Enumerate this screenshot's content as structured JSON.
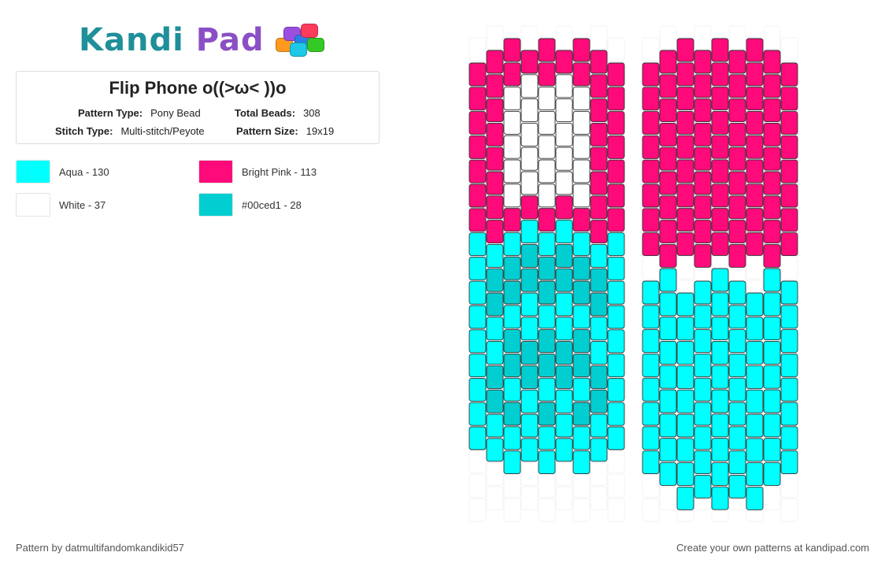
{
  "brand": {
    "word1": "Kandi",
    "word2": "Pad",
    "beads_icon": "bead-pile-icon"
  },
  "pattern": {
    "title": "Flip Phone o((>ω< ))o",
    "type_label": "Pattern Type:",
    "type_value": "Pony Bead",
    "beads_label": "Total Beads:",
    "beads_value": "308",
    "stitch_label": "Stitch Type:",
    "stitch_value": "Multi-stitch/Peyote",
    "size_label": "Pattern Size:",
    "size_value": "19x19"
  },
  "legend": [
    {
      "label": "Aqua - 130",
      "color": "#00ffff"
    },
    {
      "label": "Bright Pink - 113",
      "color": "#ff0a7a"
    },
    {
      "label": "White - 37",
      "color": "#ffffff"
    },
    {
      "label": "#00ced1 - 28",
      "color": "#00ced1"
    }
  ],
  "footer": {
    "credit": "Pattern by datmultifandomkandikid57",
    "cta": "Create your own patterns at kandipad.com"
  },
  "colors": {
    "pink": "#ff0a7a",
    "aqua": "#00ffff",
    "teal": "#00ced1",
    "white": "#ffffff"
  }
}
